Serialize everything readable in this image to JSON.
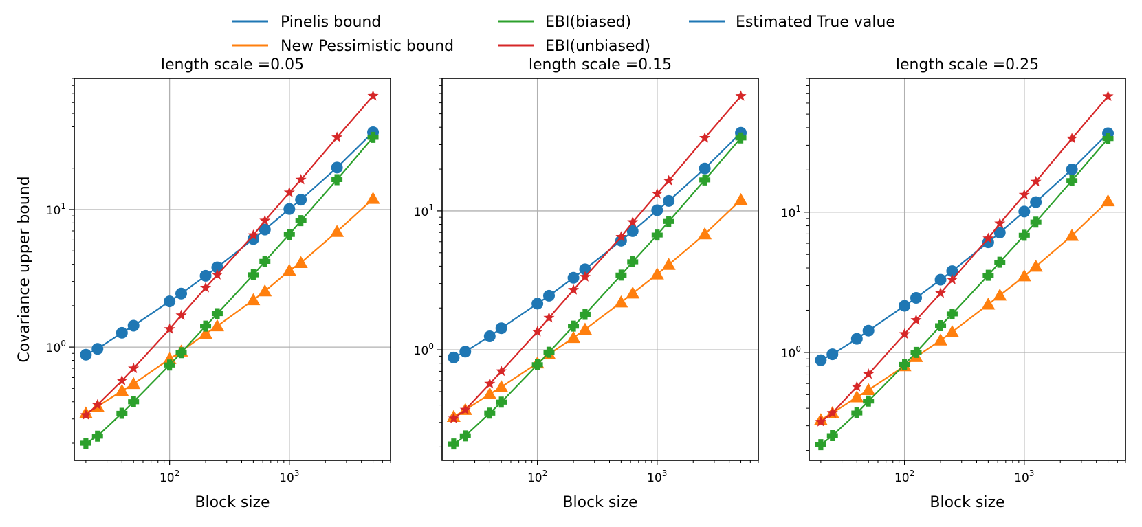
{
  "chart_data": [
    {
      "type": "line",
      "title": "length scale =0.05",
      "xlabel": "Block size",
      "ylabel": "Covariance upper bound",
      "xscale": "log",
      "yscale": "log",
      "grid": true,
      "x": [
        20,
        25,
        40,
        50,
        100,
        125,
        200,
        250,
        500,
        625,
        1000,
        1250,
        2500,
        5000
      ],
      "xlim": [
        16,
        7000
      ],
      "ylim": [
        0.15,
        90
      ],
      "xticks": [
        {
          "base": "10",
          "exp": "2",
          "value": 100
        },
        {
          "base": "10",
          "exp": "3",
          "value": 1000
        }
      ],
      "yticks": [
        {
          "base": "10",
          "exp": "0",
          "value": 1
        },
        {
          "base": "10",
          "exp": "1",
          "value": 10
        }
      ],
      "series": [
        {
          "name": "Pinelis bound",
          "color": "#1f77b4",
          "marker": "circle",
          "values": [
            0.88,
            0.97,
            1.27,
            1.43,
            2.15,
            2.45,
            3.3,
            3.8,
            6.1,
            7.15,
            10.1,
            11.8,
            20.2,
            36.5
          ]
        },
        {
          "name": "New Pessimistic bound",
          "color": "#ff7f0e",
          "marker": "triangle",
          "values": [
            0.33,
            0.37,
            0.48,
            0.54,
            0.82,
            0.93,
            1.25,
            1.42,
            2.2,
            2.55,
            3.6,
            4.1,
            6.9,
            12.0
          ]
        },
        {
          "name": "EBI(biased)",
          "color": "#2ca02c",
          "marker": "plus",
          "values": [
            0.2,
            0.225,
            0.33,
            0.4,
            0.74,
            0.91,
            1.42,
            1.75,
            3.35,
            4.2,
            6.6,
            8.3,
            16.5,
            33.5
          ]
        },
        {
          "name": "EBI(unbiased)",
          "color": "#d62728",
          "marker": "star",
          "values": [
            0.32,
            0.38,
            0.57,
            0.7,
            1.35,
            1.7,
            2.7,
            3.35,
            6.5,
            8.3,
            13.3,
            16.5,
            33.5,
            67.0
          ]
        }
      ]
    },
    {
      "type": "line",
      "title": "length scale =0.15",
      "xlabel": "Block size",
      "ylabel": "",
      "xscale": "log",
      "yscale": "log",
      "grid": true,
      "x": [
        20,
        25,
        40,
        50,
        100,
        125,
        200,
        250,
        500,
        625,
        1000,
        1250,
        2500,
        5000
      ],
      "xlim": [
        16,
        7000
      ],
      "ylim": [
        0.16,
        90
      ],
      "xticks": [
        {
          "base": "10",
          "exp": "2",
          "value": 100
        },
        {
          "base": "10",
          "exp": "3",
          "value": 1000
        }
      ],
      "yticks": [
        {
          "base": "10",
          "exp": "0",
          "value": 1
        },
        {
          "base": "10",
          "exp": "1",
          "value": 10
        }
      ],
      "series": [
        {
          "name": "Pinelis bound",
          "color": "#1f77b4",
          "marker": "circle",
          "values": [
            0.88,
            0.97,
            1.25,
            1.43,
            2.15,
            2.45,
            3.3,
            3.8,
            6.1,
            7.15,
            10.1,
            11.8,
            20.2,
            36.5
          ]
        },
        {
          "name": "New Pessimistic bound",
          "color": "#ff7f0e",
          "marker": "triangle",
          "values": [
            0.33,
            0.37,
            0.48,
            0.54,
            0.8,
            0.93,
            1.22,
            1.4,
            2.2,
            2.55,
            3.5,
            4.1,
            6.8,
            12.0
          ]
        },
        {
          "name": "EBI(biased)",
          "color": "#2ca02c",
          "marker": "plus",
          "values": [
            0.21,
            0.24,
            0.35,
            0.42,
            0.78,
            0.96,
            1.48,
            1.8,
            3.45,
            4.3,
            6.7,
            8.4,
            16.7,
            33.5
          ]
        },
        {
          "name": "EBI(unbiased)",
          "color": "#d62728",
          "marker": "star",
          "values": [
            0.32,
            0.37,
            0.57,
            0.7,
            1.35,
            1.7,
            2.7,
            3.35,
            6.5,
            8.3,
            13.3,
            16.5,
            33.5,
            67.0
          ]
        }
      ]
    },
    {
      "type": "line",
      "title": "length scale =0.25",
      "xlabel": "Block size",
      "ylabel": "",
      "xscale": "log",
      "yscale": "log",
      "grid": true,
      "x": [
        20,
        25,
        40,
        50,
        100,
        125,
        200,
        250,
        500,
        625,
        1000,
        1250,
        2500,
        5000
      ],
      "xlim": [
        16,
        7000
      ],
      "ylim": [
        0.17,
        90
      ],
      "xticks": [
        {
          "base": "10",
          "exp": "2",
          "value": 100
        },
        {
          "base": "10",
          "exp": "3",
          "value": 1000
        }
      ],
      "yticks": [
        {
          "base": "10",
          "exp": "0",
          "value": 1
        },
        {
          "base": "10",
          "exp": "1",
          "value": 10
        }
      ],
      "series": [
        {
          "name": "Pinelis bound",
          "color": "#1f77b4",
          "marker": "circle",
          "values": [
            0.88,
            0.97,
            1.25,
            1.43,
            2.15,
            2.45,
            3.3,
            3.8,
            6.1,
            7.15,
            10.1,
            11.8,
            20.2,
            36.5
          ]
        },
        {
          "name": "New Pessimistic bound",
          "color": "#ff7f0e",
          "marker": "triangle",
          "values": [
            0.33,
            0.37,
            0.48,
            0.54,
            0.8,
            0.93,
            1.22,
            1.4,
            2.2,
            2.55,
            3.5,
            4.1,
            6.8,
            12.0
          ]
        },
        {
          "name": "EBI(biased)",
          "color": "#2ca02c",
          "marker": "plus",
          "values": [
            0.22,
            0.255,
            0.37,
            0.45,
            0.82,
            1.0,
            1.55,
            1.88,
            3.55,
            4.4,
            6.85,
            8.5,
            16.8,
            33.5
          ]
        },
        {
          "name": "EBI(unbiased)",
          "color": "#d62728",
          "marker": "star",
          "values": [
            0.32,
            0.37,
            0.57,
            0.7,
            1.35,
            1.7,
            2.65,
            3.3,
            6.5,
            8.3,
            13.3,
            16.5,
            33.5,
            67.0
          ]
        }
      ]
    }
  ],
  "legend": {
    "placement": "top-center",
    "entries": [
      {
        "label": "Pinelis bound",
        "color": "#1f77b4"
      },
      {
        "label": "New Pessimistic bound",
        "color": "#ff7f0e"
      },
      {
        "label": "EBI(biased)",
        "color": "#2ca02c"
      },
      {
        "label": "EBI(unbiased)",
        "color": "#d62728"
      },
      {
        "label": "Estimated True value",
        "color": "#1f77b4"
      }
    ]
  }
}
